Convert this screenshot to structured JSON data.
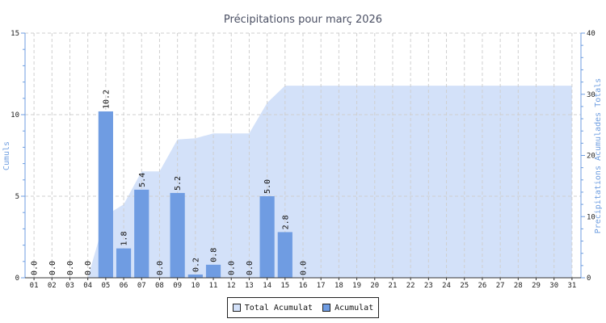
{
  "chart_data": {
    "type": "bar",
    "title": "Précipitations pour març 2026",
    "ylabel_left": "Cumuls",
    "ylabel_right": "Precipitations Acumulades Totals",
    "ylim_left": [
      0,
      15
    ],
    "yticks_left": [
      0,
      5,
      10,
      15
    ],
    "ylim_right": [
      0,
      40
    ],
    "yticks_right": [
      0,
      10,
      20,
      30,
      40
    ],
    "grid": true,
    "legend_position": "bottom-center",
    "categories": [
      "01",
      "02",
      "03",
      "04",
      "05",
      "06",
      "07",
      "08",
      "09",
      "10",
      "11",
      "12",
      "13",
      "14",
      "15",
      "16",
      "17",
      "18",
      "19",
      "20",
      "21",
      "22",
      "23",
      "24",
      "25",
      "26",
      "27",
      "28",
      "29",
      "30",
      "31"
    ],
    "series": [
      {
        "name": "Acumulat",
        "type": "bar",
        "axis": "left",
        "color": "#6f9ce2",
        "values": [
          0.0,
          0.0,
          0.0,
          0.0,
          10.2,
          1.8,
          5.4,
          0.0,
          5.2,
          0.2,
          0.8,
          0.0,
          0.0,
          5.0,
          2.8,
          0.0,
          null,
          null,
          null,
          null,
          null,
          null,
          null,
          null,
          null,
          null,
          null,
          null,
          null,
          null,
          null
        ],
        "labels": [
          "0.0",
          "0.0",
          "0.0",
          "0.0",
          "10.2",
          "1.8",
          "5.4",
          "0.0",
          "5.2",
          "0.2",
          "0.8",
          "0.0",
          "0.0",
          "5.0",
          "2.8",
          "0.0",
          "",
          "",
          "",
          "",
          "",
          "",
          "",
          "",
          "",
          "",
          "",
          "",
          "",
          "",
          ""
        ]
      },
      {
        "name": "Total Acumulat",
        "type": "area",
        "axis": "right",
        "color": "#d3e1f9",
        "values": [
          0,
          0,
          0,
          0,
          10.2,
          12,
          17.4,
          17.4,
          22.6,
          22.8,
          23.6,
          23.6,
          23.6,
          28.6,
          31.4,
          31.4,
          31.4,
          31.4,
          31.4,
          31.4,
          31.4,
          31.4,
          31.4,
          31.4,
          31.4,
          31.4,
          31.4,
          31.4,
          31.4,
          31.4,
          31.4
        ]
      }
    ]
  },
  "legend": {
    "items": [
      {
        "label": "Total Acumulat",
        "color": "#d3e1f9"
      },
      {
        "label": "Acumulat",
        "color": "#6f9ce2"
      }
    ]
  }
}
